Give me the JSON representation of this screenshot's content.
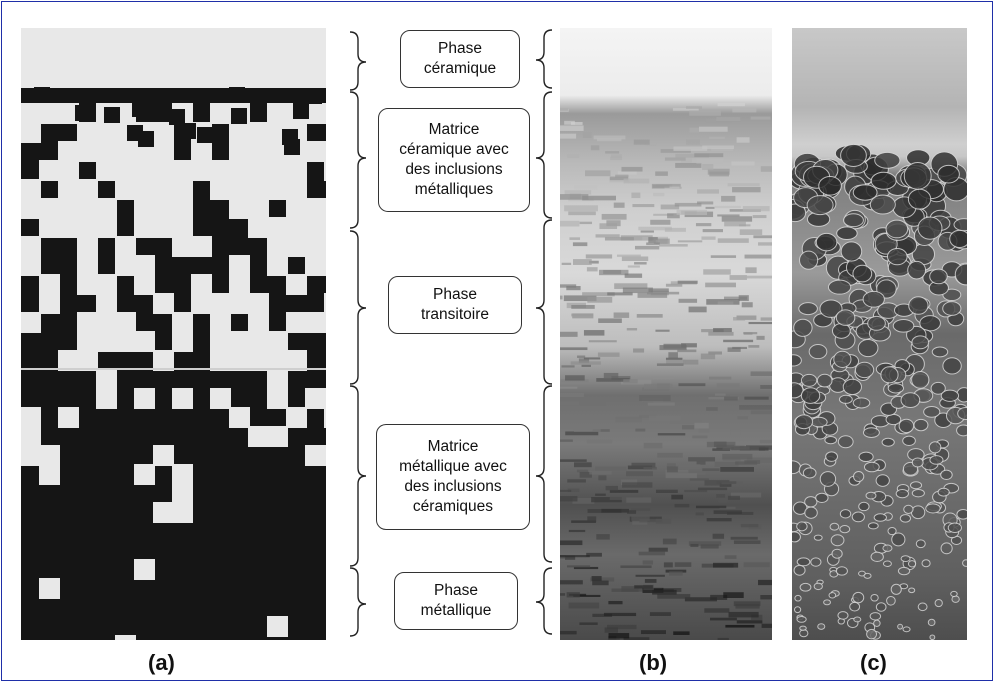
{
  "labels": {
    "ceramic_phase": "Phase\ncéramique",
    "ceramic_matrix": "Matrice\ncéramique avec\ndes inclusions\nmétalliques",
    "transition_phase": "Phase\ntransitoire",
    "metallic_matrix": "Matrice\nmétallique avec\ndes inclusions\ncéramiques",
    "metallic_phase": "Phase\nmétallique"
  },
  "captions": {
    "a": "(a)",
    "b": "(b)",
    "c": "(c)"
  },
  "colors": {
    "frame": "#1f2fa8",
    "ceramic": "#e8e8e8",
    "metal": "#151515"
  }
}
